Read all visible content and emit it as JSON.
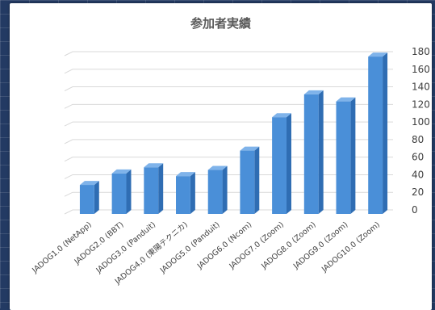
{
  "chart_data": {
    "type": "bar",
    "title": "参加者実績",
    "categories": [
      "JADOG1.0 (NetApp)",
      "JADOG2.0 (BBT)",
      "JADOG3.0 (Panduit)",
      "JADOG4.0 (東陽テクニカ)",
      "JADOG5.0 (Panduit)",
      "JADOG6.0 (Ncom)",
      "JADOG7.0 (Zoom)",
      "JADOG8.0 (Zoom)",
      "JADOG9.0 (Zoom)",
      "JADOG10.0 (Zoom)"
    ],
    "values": [
      33,
      46,
      53,
      43,
      50,
      72,
      110,
      136,
      128,
      179
    ],
    "ylim": [
      0,
      180
    ],
    "yticks": [
      0,
      20,
      40,
      60,
      80,
      100,
      120,
      140,
      160,
      180
    ],
    "axis_position": "right",
    "grid": true,
    "style": "3d-column",
    "colors": {
      "bar_front": "#4a8fd8",
      "bar_side": "#2f6db3",
      "bar_top": "#7fb3ea",
      "grid": "#d9d9d9"
    }
  }
}
